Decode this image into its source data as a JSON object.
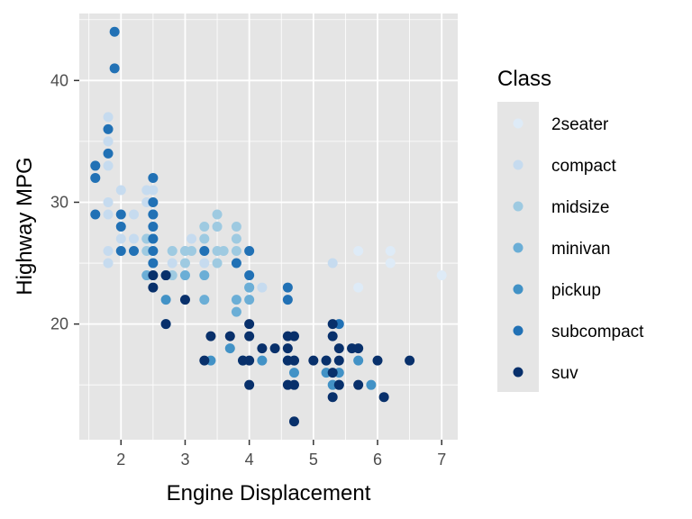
{
  "chart_data": {
    "type": "scatter",
    "title": "",
    "xlabel": "Engine Displacement",
    "ylabel": "Highway MPG",
    "xlim": [
      1.35,
      7.25
    ],
    "ylim": [
      10.5,
      45.5
    ],
    "x_ticks": [
      2,
      3,
      4,
      5,
      6,
      7
    ],
    "y_ticks": [
      20,
      30,
      40
    ],
    "grid": true,
    "legend": {
      "title": "Class",
      "placement": "right",
      "entries": [
        "2seater",
        "compact",
        "midsize",
        "minivan",
        "pickup",
        "subcompact",
        "suv"
      ]
    },
    "colors": {
      "2seater": "#deebf7",
      "compact": "#c6dbef",
      "midsize": "#9ecae1",
      "minivan": "#6baed6",
      "pickup": "#4292c6",
      "subcompact": "#2171b5",
      "suv": "#08306b",
      "panel": "#e5e5e5",
      "grid": "#ffffff"
    },
    "series": [
      {
        "name": "2seater",
        "points": [
          [
            5.7,
            26
          ],
          [
            5.7,
            23
          ],
          [
            6.2,
            26
          ],
          [
            6.2,
            25
          ],
          [
            7.0,
            24
          ]
        ]
      },
      {
        "name": "compact",
        "points": [
          [
            1.8,
            37
          ],
          [
            1.8,
            35
          ],
          [
            1.8,
            33
          ],
          [
            1.8,
            30
          ],
          [
            1.8,
            29
          ],
          [
            1.8,
            26
          ],
          [
            1.8,
            25
          ],
          [
            2.0,
            31
          ],
          [
            2.0,
            29
          ],
          [
            2.0,
            28
          ],
          [
            2.0,
            27
          ],
          [
            2.0,
            26
          ],
          [
            2.2,
            29
          ],
          [
            2.2,
            27
          ],
          [
            2.4,
            31
          ],
          [
            2.4,
            30
          ],
          [
            2.4,
            27
          ],
          [
            2.5,
            31
          ],
          [
            2.5,
            29
          ],
          [
            2.5,
            28
          ],
          [
            2.5,
            26
          ],
          [
            2.7,
            24
          ],
          [
            2.8,
            26
          ],
          [
            2.8,
            25
          ],
          [
            3.0,
            26
          ],
          [
            3.1,
            27
          ],
          [
            3.3,
            25
          ],
          [
            3.5,
            28
          ],
          [
            4.2,
            23
          ],
          [
            5.3,
            25
          ]
        ]
      },
      {
        "name": "midsize",
        "points": [
          [
            2.4,
            27
          ],
          [
            2.4,
            26
          ],
          [
            2.5,
            29
          ],
          [
            2.5,
            27
          ],
          [
            2.8,
            26
          ],
          [
            2.8,
            24
          ],
          [
            3.0,
            26
          ],
          [
            3.0,
            25
          ],
          [
            3.1,
            26
          ],
          [
            3.3,
            28
          ],
          [
            3.3,
            27
          ],
          [
            3.5,
            29
          ],
          [
            3.5,
            28
          ],
          [
            3.5,
            26
          ],
          [
            3.5,
            25
          ],
          [
            3.6,
            26
          ],
          [
            3.8,
            28
          ],
          [
            3.8,
            27
          ],
          [
            3.8,
            26
          ],
          [
            4.0,
            23
          ]
        ]
      },
      {
        "name": "minivan",
        "points": [
          [
            2.4,
            24
          ],
          [
            3.0,
            24
          ],
          [
            3.3,
            24
          ],
          [
            3.3,
            22
          ],
          [
            3.8,
            22
          ],
          [
            3.8,
            21
          ],
          [
            4.0,
            23
          ],
          [
            4.0,
            22
          ]
        ]
      },
      {
        "name": "pickup",
        "points": [
          [
            2.7,
            22
          ],
          [
            2.7,
            20
          ],
          [
            3.4,
            17
          ],
          [
            3.7,
            18
          ],
          [
            3.9,
            17
          ],
          [
            4.2,
            17
          ],
          [
            4.6,
            17
          ],
          [
            4.7,
            17
          ],
          [
            4.7,
            16
          ],
          [
            5.2,
            17
          ],
          [
            5.2,
            16
          ],
          [
            5.3,
            15
          ],
          [
            5.4,
            16
          ],
          [
            5.4,
            15
          ],
          [
            5.7,
            17
          ],
          [
            5.9,
            15
          ]
        ]
      },
      {
        "name": "subcompact",
        "points": [
          [
            1.6,
            33
          ],
          [
            1.6,
            32
          ],
          [
            1.6,
            29
          ],
          [
            1.8,
            36
          ],
          [
            1.8,
            34
          ],
          [
            1.9,
            44
          ],
          [
            1.9,
            41
          ],
          [
            2.0,
            29
          ],
          [
            2.0,
            28
          ],
          [
            2.0,
            26
          ],
          [
            2.2,
            26
          ],
          [
            2.5,
            32
          ],
          [
            2.5,
            30
          ],
          [
            2.5,
            29
          ],
          [
            2.5,
            28
          ],
          [
            2.5,
            27
          ],
          [
            2.5,
            26
          ],
          [
            2.5,
            25
          ],
          [
            2.7,
            24
          ],
          [
            3.3,
            26
          ],
          [
            3.8,
            25
          ],
          [
            4.0,
            26
          ],
          [
            4.0,
            24
          ],
          [
            4.6,
            23
          ],
          [
            4.6,
            22
          ],
          [
            5.4,
            20
          ]
        ]
      },
      {
        "name": "suv",
        "points": [
          [
            2.5,
            24
          ],
          [
            2.5,
            23
          ],
          [
            2.7,
            24
          ],
          [
            2.7,
            20
          ],
          [
            3.0,
            22
          ],
          [
            3.3,
            17
          ],
          [
            3.4,
            19
          ],
          [
            3.7,
            19
          ],
          [
            3.9,
            17
          ],
          [
            4.0,
            20
          ],
          [
            4.0,
            19
          ],
          [
            4.0,
            17
          ],
          [
            4.0,
            15
          ],
          [
            4.2,
            18
          ],
          [
            4.4,
            18
          ],
          [
            4.6,
            19
          ],
          [
            4.6,
            18
          ],
          [
            4.6,
            17
          ],
          [
            4.6,
            15
          ],
          [
            4.7,
            19
          ],
          [
            4.7,
            17
          ],
          [
            4.7,
            15
          ],
          [
            4.7,
            12
          ],
          [
            5.0,
            17
          ],
          [
            5.2,
            17
          ],
          [
            5.3,
            20
          ],
          [
            5.3,
            19
          ],
          [
            5.3,
            16
          ],
          [
            5.3,
            14
          ],
          [
            5.4,
            18
          ],
          [
            5.4,
            17
          ],
          [
            5.4,
            15
          ],
          [
            5.6,
            18
          ],
          [
            5.7,
            18
          ],
          [
            5.7,
            15
          ],
          [
            6.0,
            17
          ],
          [
            6.1,
            14
          ],
          [
            6.5,
            17
          ]
        ]
      }
    ]
  }
}
